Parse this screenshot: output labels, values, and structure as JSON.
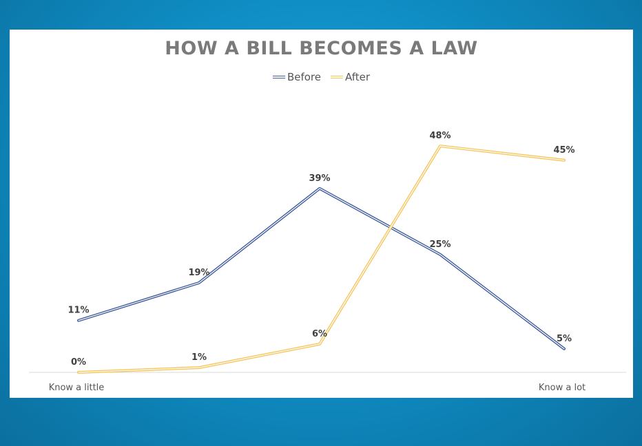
{
  "chart_data": {
    "type": "line",
    "title": "HOW A BILL BECOMES A LAW",
    "categories": [
      "Know a little",
      "",
      "",
      "",
      "Know a lot"
    ],
    "series": [
      {
        "name": "Before",
        "values": [
          11,
          19,
          39,
          25,
          5
        ],
        "labels": [
          "11%",
          "19%",
          "39%",
          "25%",
          "5%"
        ],
        "color": "#3d5a99"
      },
      {
        "name": "After",
        "values": [
          0,
          1,
          6,
          48,
          45
        ],
        "labels": [
          "0%",
          "1%",
          "6%",
          "48%",
          "45%"
        ],
        "color": "#f7c55a"
      }
    ],
    "ylim": [
      0,
      50
    ],
    "grid": false,
    "legend_position": "top-center"
  }
}
